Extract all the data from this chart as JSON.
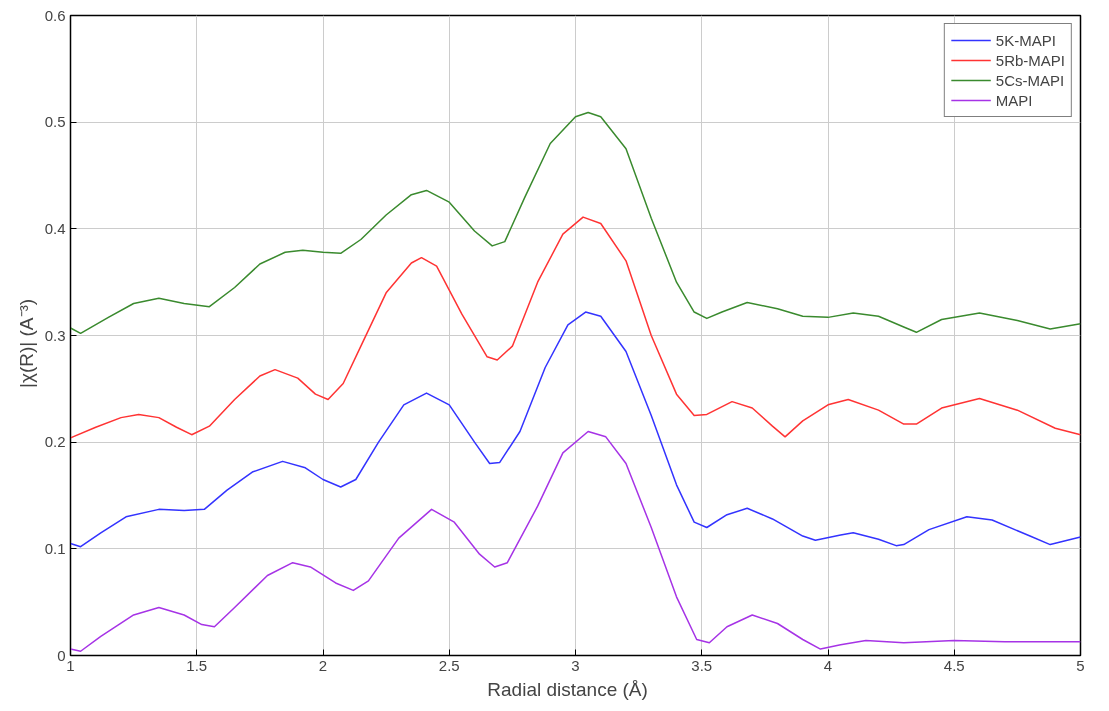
{
  "chart_data": {
    "type": "line",
    "xlabel": "Radial distance    (Å)",
    "ylabel": "|χ(R)|    (A⁻³)",
    "xlim": [
      1,
      5
    ],
    "ylim": [
      0,
      0.6
    ],
    "xticks": [
      1,
      1.5,
      2,
      2.5,
      3,
      3.5,
      4,
      4.5,
      5
    ],
    "yticks": [
      0,
      0.1,
      0.2,
      0.3,
      0.4,
      0.5,
      0.6
    ],
    "grid": true,
    "legend": "top right",
    "line_style": "solid",
    "marker": "none",
    "series": [
      {
        "name": "5K-MAPI",
        "color": "#3333ff",
        "x": [
          1.0,
          1.04,
          1.12,
          1.22,
          1.35,
          1.45,
          1.53,
          1.62,
          1.72,
          1.84,
          1.93,
          2.0,
          2.07,
          2.13,
          2.22,
          2.32,
          2.41,
          2.5,
          2.6,
          2.66,
          2.7,
          2.78,
          2.88,
          2.97,
          3.04,
          3.1,
          3.2,
          3.3,
          3.4,
          3.47,
          3.52,
          3.6,
          3.68,
          3.78,
          3.9,
          3.95,
          4.05,
          4.1,
          4.2,
          4.27,
          4.3,
          4.4,
          4.55,
          4.65,
          4.8,
          4.88,
          5.0
        ],
        "values": [
          0.105,
          0.102,
          0.115,
          0.13,
          0.137,
          0.136,
          0.137,
          0.155,
          0.172,
          0.182,
          0.176,
          0.165,
          0.158,
          0.165,
          0.2,
          0.235,
          0.246,
          0.235,
          0.2,
          0.18,
          0.181,
          0.21,
          0.27,
          0.31,
          0.322,
          0.318,
          0.285,
          0.225,
          0.16,
          0.125,
          0.12,
          0.132,
          0.138,
          0.128,
          0.112,
          0.108,
          0.113,
          0.115,
          0.109,
          0.103,
          0.104,
          0.118,
          0.13,
          0.127,
          0.112,
          0.104,
          0.111
        ]
      },
      {
        "name": "5Rb-MAPI",
        "color": "#ff3333",
        "x": [
          1.0,
          1.1,
          1.2,
          1.27,
          1.35,
          1.42,
          1.48,
          1.55,
          1.65,
          1.75,
          1.81,
          1.9,
          1.97,
          2.02,
          2.08,
          2.15,
          2.25,
          2.35,
          2.39,
          2.45,
          2.55,
          2.65,
          2.69,
          2.75,
          2.85,
          2.95,
          3.03,
          3.1,
          3.2,
          3.3,
          3.4,
          3.47,
          3.52,
          3.62,
          3.7,
          3.78,
          3.83,
          3.9,
          4.0,
          4.08,
          4.2,
          4.3,
          4.35,
          4.45,
          4.6,
          4.75,
          4.9,
          5.0
        ],
        "values": [
          0.204,
          0.214,
          0.223,
          0.226,
          0.223,
          0.214,
          0.207,
          0.215,
          0.24,
          0.262,
          0.268,
          0.26,
          0.245,
          0.24,
          0.255,
          0.29,
          0.34,
          0.368,
          0.373,
          0.365,
          0.32,
          0.28,
          0.277,
          0.29,
          0.35,
          0.395,
          0.411,
          0.405,
          0.37,
          0.3,
          0.245,
          0.225,
          0.226,
          0.238,
          0.232,
          0.215,
          0.205,
          0.22,
          0.235,
          0.24,
          0.23,
          0.217,
          0.217,
          0.232,
          0.241,
          0.23,
          0.213,
          0.207
        ]
      },
      {
        "name": "5Cs-MAPI",
        "color": "#3a8a2e",
        "x": [
          1.0,
          1.04,
          1.15,
          1.25,
          1.35,
          1.45,
          1.55,
          1.65,
          1.75,
          1.85,
          1.92,
          2.0,
          2.07,
          2.15,
          2.25,
          2.35,
          2.41,
          2.5,
          2.6,
          2.67,
          2.72,
          2.8,
          2.9,
          3.0,
          3.05,
          3.1,
          3.2,
          3.3,
          3.4,
          3.47,
          3.52,
          3.58,
          3.68,
          3.8,
          3.9,
          4.0,
          4.1,
          4.2,
          4.3,
          4.35,
          4.45,
          4.6,
          4.75,
          4.88,
          5.0
        ],
        "values": [
          0.307,
          0.302,
          0.317,
          0.33,
          0.335,
          0.33,
          0.327,
          0.345,
          0.367,
          0.378,
          0.38,
          0.378,
          0.377,
          0.39,
          0.413,
          0.432,
          0.436,
          0.425,
          0.398,
          0.384,
          0.388,
          0.43,
          0.48,
          0.505,
          0.509,
          0.505,
          0.475,
          0.41,
          0.35,
          0.322,
          0.316,
          0.322,
          0.331,
          0.325,
          0.318,
          0.317,
          0.321,
          0.318,
          0.308,
          0.303,
          0.315,
          0.321,
          0.314,
          0.306,
          0.311
        ]
      },
      {
        "name": "MAPI",
        "color": "#a633e6",
        "x": [
          1.0,
          1.04,
          1.12,
          1.25,
          1.35,
          1.45,
          1.52,
          1.57,
          1.65,
          1.78,
          1.88,
          1.95,
          2.05,
          2.12,
          2.18,
          2.3,
          2.43,
          2.52,
          2.62,
          2.68,
          2.73,
          2.85,
          2.95,
          3.05,
          3.12,
          3.2,
          3.3,
          3.4,
          3.48,
          3.53,
          3.6,
          3.7,
          3.8,
          3.9,
          3.97,
          4.05,
          4.15,
          4.3,
          4.5,
          4.7,
          5.0
        ],
        "values": [
          0.006,
          0.004,
          0.018,
          0.038,
          0.045,
          0.038,
          0.029,
          0.027,
          0.045,
          0.075,
          0.087,
          0.083,
          0.068,
          0.061,
          0.07,
          0.11,
          0.137,
          0.125,
          0.095,
          0.083,
          0.087,
          0.14,
          0.19,
          0.21,
          0.205,
          0.18,
          0.12,
          0.055,
          0.015,
          0.012,
          0.027,
          0.038,
          0.03,
          0.015,
          0.006,
          0.01,
          0.014,
          0.012,
          0.014,
          0.013,
          0.013
        ]
      }
    ]
  }
}
